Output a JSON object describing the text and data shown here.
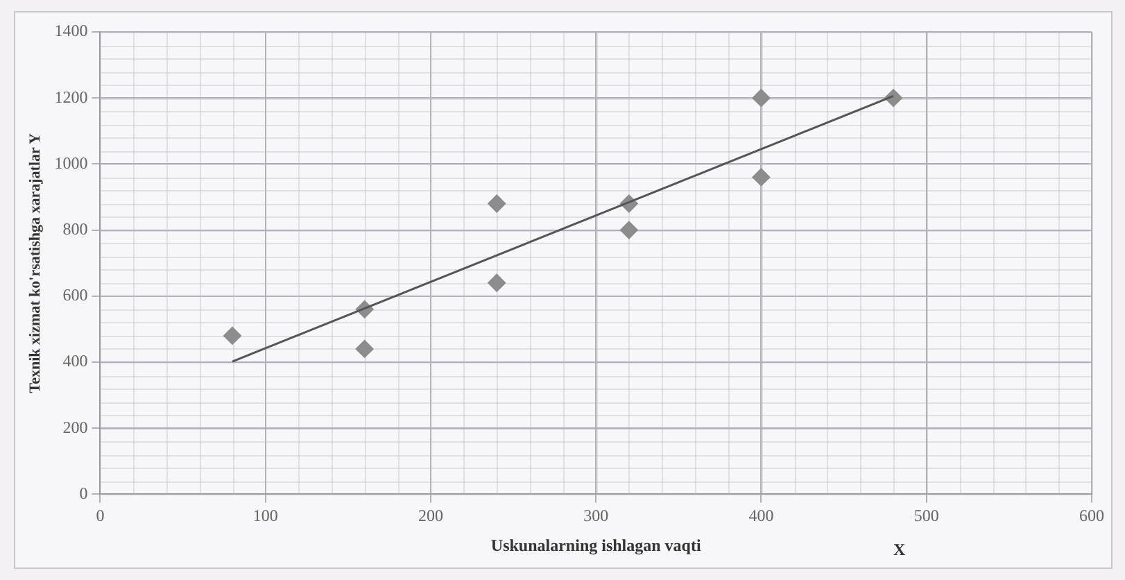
{
  "chart_data": {
    "type": "scatter",
    "xlabel": "Uskunalarning ishlagan vaqti",
    "ylabel": "Texnik xizmat ko'rsatishga xarajatlar Y",
    "annotations": [
      "X"
    ],
    "series": [
      {
        "color": "#8c8c8c",
        "marker": "diamond",
        "x": [
          80,
          160,
          160,
          240,
          240,
          320,
          320,
          400,
          400,
          480
        ],
        "values": [
          480,
          440,
          560,
          640,
          880,
          800,
          880,
          960,
          1200,
          1200
        ]
      },
      {
        "type": "line",
        "color": "#555555",
        "marker": "none",
        "x": [
          80,
          480
        ],
        "values": [
          402,
          1206
        ]
      }
    ],
    "xlim": [
      0,
      600
    ],
    "xticks": [
      0,
      100,
      200,
      300,
      400,
      500,
      600
    ],
    "ylim": [
      0,
      1400
    ],
    "yticks": [
      0,
      200,
      400,
      600,
      800,
      1000,
      1200,
      1400
    ],
    "grid": true,
    "legend": false
  }
}
